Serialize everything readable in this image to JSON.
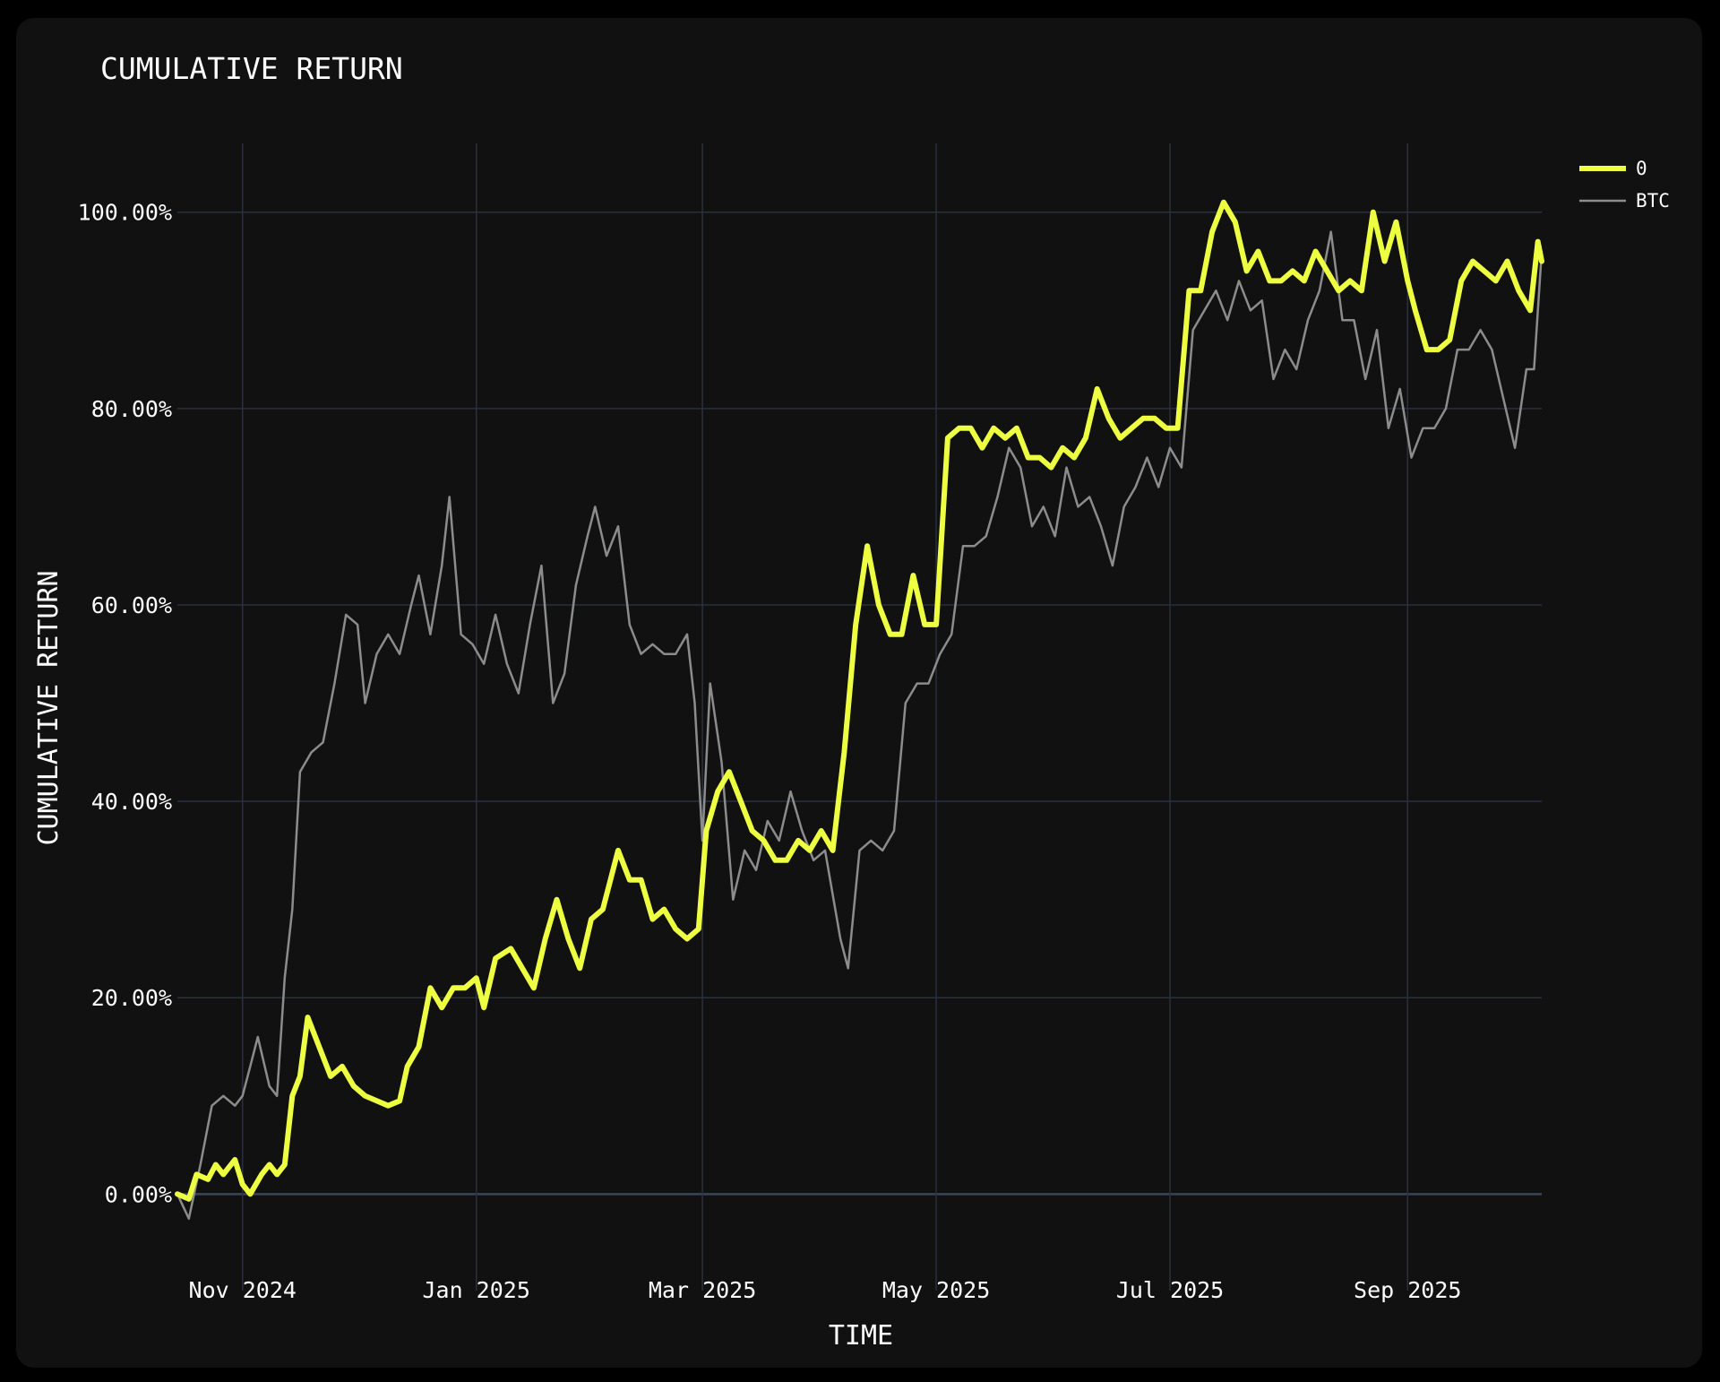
{
  "chart_data": {
    "type": "line",
    "title": "CUMULATIVE RETURN",
    "xlabel": "TIME",
    "ylabel": "CUMULATIVE RETURN",
    "x_range": [
      "2024-10-15",
      "2025-10-06"
    ],
    "ylim": [
      -8,
      107
    ],
    "y_ticks": [
      0,
      20,
      40,
      60,
      80,
      100
    ],
    "y_tick_labels": [
      "0.00%",
      "20.00%",
      "40.00%",
      "60.00%",
      "80.00%",
      "100.00%"
    ],
    "x_ticks": [
      "2024-11-01",
      "2025-01-01",
      "2025-03-01",
      "2025-05-01",
      "2025-07-01",
      "2025-09-01"
    ],
    "x_tick_labels": [
      "Nov 2024",
      "Jan 2025",
      "Mar 2025",
      "May 2025",
      "Jul 2025",
      "Sep 2025"
    ],
    "grid": true,
    "legend_position": "top-right",
    "series": [
      {
        "name": "0",
        "color": "#eeff41",
        "points": [
          [
            "2024-10-15",
            0
          ],
          [
            "2024-10-18",
            -0.5
          ],
          [
            "2024-10-20",
            2
          ],
          [
            "2024-10-23",
            1.5
          ],
          [
            "2024-10-25",
            3
          ],
          [
            "2024-10-27",
            2
          ],
          [
            "2024-10-30",
            3.5
          ],
          [
            "2024-11-01",
            1
          ],
          [
            "2024-11-03",
            0
          ],
          [
            "2024-11-06",
            2
          ],
          [
            "2024-11-08",
            3
          ],
          [
            "2024-11-10",
            2
          ],
          [
            "2024-11-12",
            3
          ],
          [
            "2024-11-14",
            10
          ],
          [
            "2024-11-16",
            12
          ],
          [
            "2024-11-18",
            18
          ],
          [
            "2024-11-21",
            15
          ],
          [
            "2024-11-24",
            12
          ],
          [
            "2024-11-27",
            13
          ],
          [
            "2024-11-30",
            11
          ],
          [
            "2024-12-03",
            10
          ],
          [
            "2024-12-06",
            9.5
          ],
          [
            "2024-12-09",
            9
          ],
          [
            "2024-12-12",
            9.5
          ],
          [
            "2024-12-14",
            13
          ],
          [
            "2024-12-17",
            15
          ],
          [
            "2024-12-20",
            21
          ],
          [
            "2024-12-23",
            19
          ],
          [
            "2024-12-26",
            21
          ],
          [
            "2024-12-29",
            21
          ],
          [
            "2025-01-01",
            22
          ],
          [
            "2025-01-03",
            19
          ],
          [
            "2025-01-06",
            24
          ],
          [
            "2025-01-10",
            25
          ],
          [
            "2025-01-13",
            23
          ],
          [
            "2025-01-16",
            21
          ],
          [
            "2025-01-19",
            26
          ],
          [
            "2025-01-22",
            30
          ],
          [
            "2025-01-25",
            26
          ],
          [
            "2025-01-28",
            23
          ],
          [
            "2025-01-31",
            28
          ],
          [
            "2025-02-03",
            29
          ],
          [
            "2025-02-07",
            35
          ],
          [
            "2025-02-10",
            32
          ],
          [
            "2025-02-13",
            32
          ],
          [
            "2025-02-16",
            28
          ],
          [
            "2025-02-19",
            29
          ],
          [
            "2025-02-22",
            27
          ],
          [
            "2025-02-25",
            26
          ],
          [
            "2025-02-28",
            27
          ],
          [
            "2025-03-02",
            37
          ],
          [
            "2025-03-05",
            41
          ],
          [
            "2025-03-08",
            43
          ],
          [
            "2025-03-11",
            40
          ],
          [
            "2025-03-14",
            37
          ],
          [
            "2025-03-17",
            36
          ],
          [
            "2025-03-20",
            34
          ],
          [
            "2025-03-23",
            34
          ],
          [
            "2025-03-26",
            36
          ],
          [
            "2025-03-29",
            35
          ],
          [
            "2025-04-01",
            37
          ],
          [
            "2025-04-04",
            35
          ],
          [
            "2025-04-07",
            45
          ],
          [
            "2025-04-10",
            58
          ],
          [
            "2025-04-13",
            66
          ],
          [
            "2025-04-16",
            60
          ],
          [
            "2025-04-19",
            57
          ],
          [
            "2025-04-22",
            57
          ],
          [
            "2025-04-25",
            63
          ],
          [
            "2025-04-28",
            58
          ],
          [
            "2025-05-01",
            58
          ],
          [
            "2025-05-04",
            77
          ],
          [
            "2025-05-07",
            78
          ],
          [
            "2025-05-10",
            78
          ],
          [
            "2025-05-13",
            76
          ],
          [
            "2025-05-16",
            78
          ],
          [
            "2025-05-19",
            77
          ],
          [
            "2025-05-22",
            78
          ],
          [
            "2025-05-25",
            75
          ],
          [
            "2025-05-28",
            75
          ],
          [
            "2025-05-31",
            74
          ],
          [
            "2025-06-03",
            76
          ],
          [
            "2025-06-06",
            75
          ],
          [
            "2025-06-09",
            77
          ],
          [
            "2025-06-12",
            82
          ],
          [
            "2025-06-15",
            79
          ],
          [
            "2025-06-18",
            77
          ],
          [
            "2025-06-21",
            78
          ],
          [
            "2025-06-24",
            79
          ],
          [
            "2025-06-27",
            79
          ],
          [
            "2025-06-30",
            78
          ],
          [
            "2025-07-03",
            78
          ],
          [
            "2025-07-06",
            92
          ],
          [
            "2025-07-09",
            92
          ],
          [
            "2025-07-12",
            98
          ],
          [
            "2025-07-15",
            101
          ],
          [
            "2025-07-18",
            99
          ],
          [
            "2025-07-21",
            94
          ],
          [
            "2025-07-24",
            96
          ],
          [
            "2025-07-27",
            93
          ],
          [
            "2025-07-30",
            93
          ],
          [
            "2025-08-02",
            94
          ],
          [
            "2025-08-05",
            93
          ],
          [
            "2025-08-08",
            96
          ],
          [
            "2025-08-11",
            94
          ],
          [
            "2025-08-14",
            92
          ],
          [
            "2025-08-17",
            93
          ],
          [
            "2025-08-20",
            92
          ],
          [
            "2025-08-23",
            100
          ],
          [
            "2025-08-26",
            95
          ],
          [
            "2025-08-29",
            99
          ],
          [
            "2025-09-01",
            93
          ],
          [
            "2025-09-03",
            90
          ],
          [
            "2025-09-06",
            86
          ],
          [
            "2025-09-09",
            86
          ],
          [
            "2025-09-12",
            87
          ],
          [
            "2025-09-15",
            93
          ],
          [
            "2025-09-18",
            95
          ],
          [
            "2025-09-21",
            94
          ],
          [
            "2025-09-24",
            93
          ],
          [
            "2025-09-27",
            95
          ],
          [
            "2025-09-30",
            92
          ],
          [
            "2025-10-03",
            90
          ],
          [
            "2025-10-05",
            97
          ],
          [
            "2025-10-06",
            95
          ]
        ]
      },
      {
        "name": "BTC",
        "color": "#8c8c8c",
        "points": [
          [
            "2024-10-15",
            0
          ],
          [
            "2024-10-18",
            -2.5
          ],
          [
            "2024-10-21",
            3
          ],
          [
            "2024-10-24",
            9
          ],
          [
            "2024-10-27",
            10
          ],
          [
            "2024-10-30",
            9
          ],
          [
            "2024-11-01",
            10
          ],
          [
            "2024-11-03",
            13
          ],
          [
            "2024-11-05",
            16
          ],
          [
            "2024-11-08",
            11
          ],
          [
            "2024-11-10",
            10
          ],
          [
            "2024-11-12",
            22
          ],
          [
            "2024-11-14",
            29
          ],
          [
            "2024-11-16",
            43
          ],
          [
            "2024-11-19",
            45
          ],
          [
            "2024-11-22",
            46
          ],
          [
            "2024-11-25",
            52
          ],
          [
            "2024-11-28",
            59
          ],
          [
            "2024-12-01",
            58
          ],
          [
            "2024-12-03",
            50
          ],
          [
            "2024-12-06",
            55
          ],
          [
            "2024-12-09",
            57
          ],
          [
            "2024-12-12",
            55
          ],
          [
            "2024-12-15",
            60
          ],
          [
            "2024-12-17",
            63
          ],
          [
            "2024-12-20",
            57
          ],
          [
            "2024-12-23",
            64
          ],
          [
            "2024-12-25",
            71
          ],
          [
            "2024-12-28",
            57
          ],
          [
            "2024-12-31",
            56
          ],
          [
            "2025-01-03",
            54
          ],
          [
            "2025-01-06",
            59
          ],
          [
            "2025-01-09",
            54
          ],
          [
            "2025-01-12",
            51
          ],
          [
            "2025-01-15",
            58
          ],
          [
            "2025-01-18",
            64
          ],
          [
            "2025-01-21",
            50
          ],
          [
            "2025-01-24",
            53
          ],
          [
            "2025-01-27",
            62
          ],
          [
            "2025-01-30",
            67
          ],
          [
            "2025-02-01",
            70
          ],
          [
            "2025-02-04",
            65
          ],
          [
            "2025-02-07",
            68
          ],
          [
            "2025-02-10",
            58
          ],
          [
            "2025-02-13",
            55
          ],
          [
            "2025-02-16",
            56
          ],
          [
            "2025-02-19",
            55
          ],
          [
            "2025-02-22",
            55
          ],
          [
            "2025-02-25",
            57
          ],
          [
            "2025-02-27",
            50
          ],
          [
            "2025-03-01",
            36
          ],
          [
            "2025-03-03",
            52
          ],
          [
            "2025-03-06",
            44
          ],
          [
            "2025-03-09",
            30
          ],
          [
            "2025-03-12",
            35
          ],
          [
            "2025-03-15",
            33
          ],
          [
            "2025-03-18",
            38
          ],
          [
            "2025-03-21",
            36
          ],
          [
            "2025-03-24",
            41
          ],
          [
            "2025-03-27",
            37
          ],
          [
            "2025-03-30",
            34
          ],
          [
            "2025-04-02",
            35
          ],
          [
            "2025-04-06",
            26
          ],
          [
            "2025-04-08",
            23
          ],
          [
            "2025-04-11",
            35
          ],
          [
            "2025-04-14",
            36
          ],
          [
            "2025-04-17",
            35
          ],
          [
            "2025-04-20",
            37
          ],
          [
            "2025-04-23",
            50
          ],
          [
            "2025-04-26",
            52
          ],
          [
            "2025-04-29",
            52
          ],
          [
            "2025-05-02",
            55
          ],
          [
            "2025-05-05",
            57
          ],
          [
            "2025-05-08",
            66
          ],
          [
            "2025-05-11",
            66
          ],
          [
            "2025-05-14",
            67
          ],
          [
            "2025-05-17",
            71
          ],
          [
            "2025-05-20",
            76
          ],
          [
            "2025-05-23",
            74
          ],
          [
            "2025-05-26",
            68
          ],
          [
            "2025-05-29",
            70
          ],
          [
            "2025-06-01",
            67
          ],
          [
            "2025-06-04",
            74
          ],
          [
            "2025-06-07",
            70
          ],
          [
            "2025-06-10",
            71
          ],
          [
            "2025-06-13",
            68
          ],
          [
            "2025-06-16",
            64
          ],
          [
            "2025-06-19",
            70
          ],
          [
            "2025-06-22",
            72
          ],
          [
            "2025-06-25",
            75
          ],
          [
            "2025-06-28",
            72
          ],
          [
            "2025-07-01",
            76
          ],
          [
            "2025-07-04",
            74
          ],
          [
            "2025-07-07",
            88
          ],
          [
            "2025-07-10",
            90
          ],
          [
            "2025-07-13",
            92
          ],
          [
            "2025-07-16",
            89
          ],
          [
            "2025-07-19",
            93
          ],
          [
            "2025-07-22",
            90
          ],
          [
            "2025-07-25",
            91
          ],
          [
            "2025-07-28",
            83
          ],
          [
            "2025-07-31",
            86
          ],
          [
            "2025-08-03",
            84
          ],
          [
            "2025-08-06",
            89
          ],
          [
            "2025-08-09",
            92
          ],
          [
            "2025-08-12",
            98
          ],
          [
            "2025-08-15",
            89
          ],
          [
            "2025-08-18",
            89
          ],
          [
            "2025-08-21",
            83
          ],
          [
            "2025-08-24",
            88
          ],
          [
            "2025-08-27",
            78
          ],
          [
            "2025-08-30",
            82
          ],
          [
            "2025-09-02",
            75
          ],
          [
            "2025-09-05",
            78
          ],
          [
            "2025-09-08",
            78
          ],
          [
            "2025-09-11",
            80
          ],
          [
            "2025-09-14",
            86
          ],
          [
            "2025-09-17",
            86
          ],
          [
            "2025-09-20",
            88
          ],
          [
            "2025-09-23",
            86
          ],
          [
            "2025-09-26",
            81
          ],
          [
            "2025-09-29",
            76
          ],
          [
            "2025-10-02",
            84
          ],
          [
            "2025-10-04",
            84
          ],
          [
            "2025-10-06",
            96
          ]
        ]
      }
    ]
  }
}
